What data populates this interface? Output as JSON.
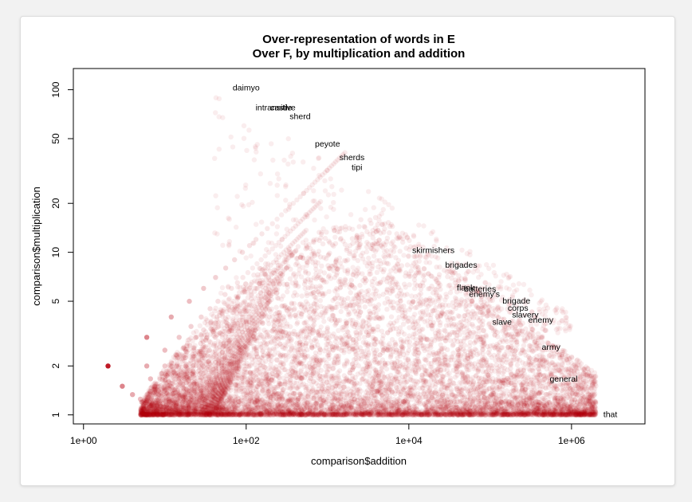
{
  "chart_data": {
    "type": "scatter",
    "title": [
      "Over-representation of words in E",
      "Over F, by multiplication and addition"
    ],
    "xlabel": "comparison$addition",
    "ylabel": "comparison$multiplication",
    "x_scale": "log",
    "y_scale": "log",
    "xlim": [
      0.75,
      8000000
    ],
    "ylim": [
      0.88,
      135
    ],
    "x_ticks": [
      {
        "value": 1,
        "label": "1e+00"
      },
      {
        "value": 100,
        "label": "1e+02"
      },
      {
        "value": 10000,
        "label": "1e+04"
      },
      {
        "value": 1000000,
        "label": "1e+06"
      }
    ],
    "y_ticks": [
      {
        "value": 1,
        "label": "1"
      },
      {
        "value": 2,
        "label": "2"
      },
      {
        "value": 5,
        "label": "5"
      },
      {
        "value": 10,
        "label": "10"
      },
      {
        "value": 20,
        "label": "20"
      },
      {
        "value": 50,
        "label": "50"
      },
      {
        "value": 100,
        "label": "100"
      }
    ],
    "point_color": "#b8000e",
    "point_opacity": 0.08,
    "labeled_points": [
      {
        "label": "daimyo",
        "x": 100,
        "y": 102
      },
      {
        "label": "intransitive",
        "x": 230,
        "y": 77
      },
      {
        "label": "castle",
        "x": 270,
        "y": 77
      },
      {
        "label": "sherd",
        "x": 460,
        "y": 68
      },
      {
        "label": "peyote",
        "x": 1000,
        "y": 46
      },
      {
        "label": "sherds",
        "x": 2000,
        "y": 38
      },
      {
        "label": "tipi",
        "x": 2300,
        "y": 33
      },
      {
        "label": "skirmishers",
        "x": 20000,
        "y": 10.2
      },
      {
        "label": "brigades",
        "x": 44000,
        "y": 8.3
      },
      {
        "label": "flank",
        "x": 50000,
        "y": 6.0
      },
      {
        "label": "batteries",
        "x": 75000,
        "y": 5.9
      },
      {
        "label": "enemy's",
        "x": 85000,
        "y": 5.5
      },
      {
        "label": "brigade",
        "x": 210000,
        "y": 5.0
      },
      {
        "label": "corps",
        "x": 220000,
        "y": 4.5
      },
      {
        "label": "slavery",
        "x": 270000,
        "y": 4.1
      },
      {
        "label": "slave",
        "x": 140000,
        "y": 3.7
      },
      {
        "label": "enemy",
        "x": 420000,
        "y": 3.8
      },
      {
        "label": "army",
        "x": 560000,
        "y": 2.6
      },
      {
        "label": "general",
        "x": 800000,
        "y": 1.65
      },
      {
        "label": "that",
        "x": 3000000,
        "y": 1.0
      }
    ]
  }
}
